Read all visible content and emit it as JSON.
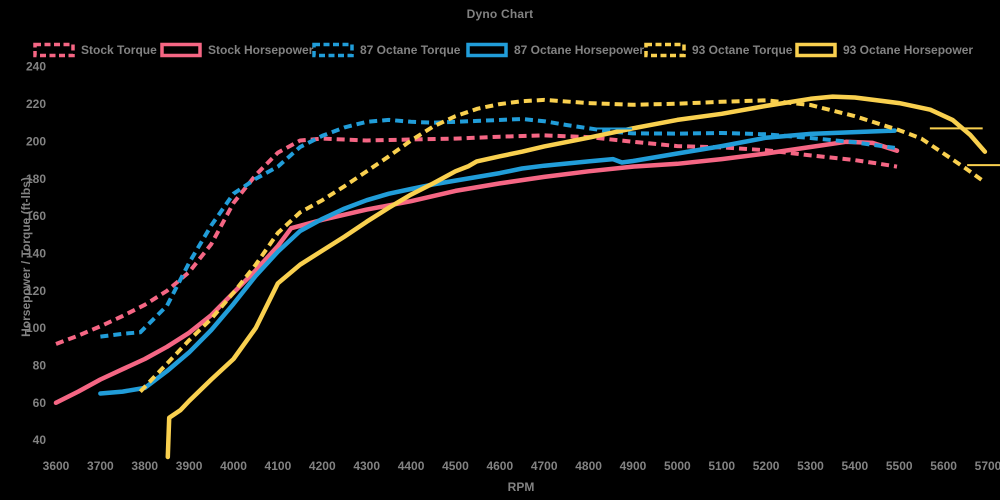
{
  "title": "Dyno Chart",
  "colors": {
    "background": "#000000",
    "text": "#828282",
    "pink": "#F56684",
    "blue": "#219DD9",
    "yellow": "#F9D04F"
  },
  "legend": {
    "items": [
      {
        "id": "stock-torque",
        "label": "Stock Torque",
        "color": "pink",
        "dash": true
      },
      {
        "id": "stock-horsepower",
        "label": "Stock Horsepower",
        "color": "pink",
        "dash": false
      },
      {
        "id": "87-octane-torque",
        "label": "87 Octane Torque",
        "color": "blue",
        "dash": true
      },
      {
        "id": "87-octane-horsepower",
        "label": "87 Octane Horsepower",
        "color": "blue",
        "dash": false
      },
      {
        "id": "93-octane-torque",
        "label": "93 Octane Torque",
        "color": "yellow",
        "dash": true
      },
      {
        "id": "93-octane-horsepower",
        "label": "93 Octane Horsepower",
        "color": "yellow",
        "dash": false
      }
    ]
  },
  "axes": {
    "x": {
      "label": "RPM",
      "min": 3600,
      "max": 5700,
      "tick_step": 100,
      "ticks": [
        3600,
        3700,
        3800,
        3900,
        4000,
        4100,
        4200,
        4300,
        4400,
        4500,
        4600,
        4700,
        4800,
        4900,
        5000,
        5100,
        5200,
        5300,
        5400,
        5500,
        5600,
        5700
      ]
    },
    "y": {
      "label": "Horsepower / Torque (ft-lbs)",
      "min": 40,
      "max": 240,
      "tick_step": 20,
      "ticks": [
        40,
        60,
        80,
        100,
        120,
        140,
        160,
        180,
        200,
        220,
        240
      ]
    }
  },
  "chart_data": {
    "type": "line",
    "title": "Dyno Chart",
    "xlabel": "RPM",
    "ylabel": "Horsepower / Torque (ft-lbs)",
    "xlim": [
      3600,
      5700
    ],
    "ylim": [
      40,
      240
    ],
    "grid": false,
    "legend_position": "top",
    "series": [
      {
        "id": "stock-torque",
        "name": "Stock Torque",
        "color": "pink",
        "dash": true,
        "points": [
          [
            3600,
            91.5
          ],
          [
            3650,
            96
          ],
          [
            3700,
            101
          ],
          [
            3750,
            106.5
          ],
          [
            3800,
            112.5
          ],
          [
            3850,
            120
          ],
          [
            3900,
            130
          ],
          [
            3950,
            145
          ],
          [
            4000,
            167
          ],
          [
            4050,
            182
          ],
          [
            4100,
            194
          ],
          [
            4150,
            200.5
          ],
          [
            4200,
            201.5
          ],
          [
            4300,
            200.5
          ],
          [
            4400,
            201
          ],
          [
            4500,
            201.5
          ],
          [
            4600,
            202.5
          ],
          [
            4700,
            203.2
          ],
          [
            4800,
            202.3
          ],
          [
            4900,
            199.8
          ],
          [
            5000,
            197.5
          ],
          [
            5100,
            196.8
          ],
          [
            5200,
            195.3
          ],
          [
            5300,
            192.5
          ],
          [
            5400,
            190
          ],
          [
            5450,
            188.2
          ],
          [
            5495,
            186.5
          ]
        ]
      },
      {
        "id": "stock-horsepower",
        "name": "Stock Horsepower",
        "color": "pink",
        "dash": false,
        "points": [
          [
            3600,
            60
          ],
          [
            3650,
            66
          ],
          [
            3700,
            72.5
          ],
          [
            3750,
            78
          ],
          [
            3800,
            83.5
          ],
          [
            3850,
            90
          ],
          [
            3900,
            97.5
          ],
          [
            3950,
            107
          ],
          [
            4000,
            119
          ],
          [
            4050,
            131
          ],
          [
            4100,
            144
          ],
          [
            4130,
            153.5
          ],
          [
            4200,
            158
          ],
          [
            4300,
            163.5
          ],
          [
            4400,
            168
          ],
          [
            4500,
            173.5
          ],
          [
            4600,
            177.5
          ],
          [
            4700,
            181
          ],
          [
            4800,
            184
          ],
          [
            4900,
            186.5
          ],
          [
            5000,
            188
          ],
          [
            5100,
            190.5
          ],
          [
            5200,
            193.5
          ],
          [
            5300,
            197
          ],
          [
            5380,
            199.8
          ],
          [
            5440,
            199.2
          ],
          [
            5495,
            195
          ]
        ]
      },
      {
        "id": "87-octane-torque",
        "name": "87 Octane Torque",
        "color": "blue",
        "dash": true,
        "points": [
          [
            3700,
            95.5
          ],
          [
            3750,
            97
          ],
          [
            3790,
            97.8
          ],
          [
            3850,
            112
          ],
          [
            3900,
            135
          ],
          [
            3950,
            155
          ],
          [
            4000,
            172
          ],
          [
            4050,
            180
          ],
          [
            4100,
            186.5
          ],
          [
            4150,
            197
          ],
          [
            4200,
            203
          ],
          [
            4250,
            207.5
          ],
          [
            4300,
            210.5
          ],
          [
            4350,
            211.5
          ],
          [
            4400,
            210.5
          ],
          [
            4450,
            210
          ],
          [
            4550,
            211
          ],
          [
            4650,
            212
          ],
          [
            4700,
            210.8
          ],
          [
            4750,
            208.8
          ],
          [
            4800,
            207
          ],
          [
            4850,
            205.3
          ],
          [
            4900,
            204.3
          ],
          [
            5000,
            204.2
          ],
          [
            5100,
            204.5
          ],
          [
            5200,
            203.8
          ],
          [
            5300,
            201.8
          ],
          [
            5400,
            199.5
          ],
          [
            5490,
            196.5
          ]
        ]
      },
      {
        "id": "87-octane-horsepower",
        "name": "87 Octane Horsepower",
        "color": "blue",
        "dash": false,
        "points": [
          [
            3700,
            65
          ],
          [
            3750,
            66
          ],
          [
            3800,
            68
          ],
          [
            3850,
            77
          ],
          [
            3900,
            87
          ],
          [
            3950,
            99
          ],
          [
            4000,
            113
          ],
          [
            4050,
            128
          ],
          [
            4100,
            141
          ],
          [
            4150,
            152
          ],
          [
            4200,
            158.5
          ],
          [
            4250,
            164
          ],
          [
            4300,
            168.5
          ],
          [
            4350,
            172
          ],
          [
            4400,
            174.5
          ],
          [
            4450,
            177
          ],
          [
            4500,
            179
          ],
          [
            4550,
            181
          ],
          [
            4600,
            183
          ],
          [
            4650,
            185.5
          ],
          [
            4700,
            187
          ],
          [
            4800,
            189.3
          ],
          [
            4855,
            190.5
          ],
          [
            4875,
            188.7
          ],
          [
            4900,
            189.5
          ],
          [
            5000,
            193.5
          ],
          [
            5100,
            197.5
          ],
          [
            5200,
            202
          ],
          [
            5300,
            204
          ],
          [
            5400,
            205
          ],
          [
            5490,
            205.8
          ]
        ]
      },
      {
        "id": "93-octane-torque",
        "name": "93 Octane Torque",
        "color": "yellow",
        "dash": true,
        "points": [
          [
            3790,
            66
          ],
          [
            3850,
            81
          ],
          [
            3900,
            93.5
          ],
          [
            3950,
            105
          ],
          [
            4000,
            119
          ],
          [
            4050,
            134
          ],
          [
            4100,
            151
          ],
          [
            4150,
            162
          ],
          [
            4200,
            168.5
          ],
          [
            4250,
            176
          ],
          [
            4300,
            184
          ],
          [
            4350,
            192
          ],
          [
            4400,
            200.5
          ],
          [
            4450,
            208
          ],
          [
            4500,
            213.5
          ],
          [
            4550,
            217.5
          ],
          [
            4600,
            220
          ],
          [
            4650,
            221.5
          ],
          [
            4700,
            222.2
          ],
          [
            4800,
            220.5
          ],
          [
            4900,
            219.6
          ],
          [
            5000,
            220.2
          ],
          [
            5100,
            221.2
          ],
          [
            5200,
            222
          ],
          [
            5300,
            219.5
          ],
          [
            5400,
            213.5
          ],
          [
            5500,
            206
          ],
          [
            5550,
            201.5
          ],
          [
            5600,
            193.5
          ],
          [
            5650,
            185.5
          ],
          [
            5688,
            179
          ]
        ]
      },
      {
        "id": "93-octane-horsepower",
        "name": "93 Octane Horsepower",
        "color": "yellow",
        "dash": false,
        "points": [
          [
            3852,
            31
          ],
          [
            3855,
            52
          ],
          [
            3880,
            56
          ],
          [
            3900,
            61
          ],
          [
            3950,
            72.5
          ],
          [
            4000,
            83.5
          ],
          [
            4050,
            100
          ],
          [
            4100,
            124
          ],
          [
            4150,
            134
          ],
          [
            4200,
            141.5
          ],
          [
            4250,
            149
          ],
          [
            4300,
            157
          ],
          [
            4350,
            164.5
          ],
          [
            4400,
            171.5
          ],
          [
            4450,
            177.5
          ],
          [
            4500,
            184
          ],
          [
            4530,
            186.8
          ],
          [
            4548,
            189.3
          ],
          [
            4600,
            192
          ],
          [
            4650,
            194.5
          ],
          [
            4700,
            197.3
          ],
          [
            4800,
            202
          ],
          [
            4900,
            207
          ],
          [
            5000,
            211.5
          ],
          [
            5100,
            214.8
          ],
          [
            5200,
            219
          ],
          [
            5300,
            222.8
          ],
          [
            5350,
            224
          ],
          [
            5400,
            223.5
          ],
          [
            5500,
            220.5
          ],
          [
            5570,
            217
          ],
          [
            5620,
            211.5
          ],
          [
            5660,
            203.5
          ],
          [
            5693,
            194.5
          ]
        ]
      }
    ],
    "artifact_segments": [
      {
        "id": "87hp-flat-spike",
        "color": "blue",
        "points": [
          [
            4808,
            206.9
          ],
          [
            4898,
            206.9
          ]
        ]
      },
      {
        "id": "93hp-flat-spike-1",
        "color": "yellow",
        "points": [
          [
            5569,
            207
          ],
          [
            5688,
            207
          ]
        ]
      },
      {
        "id": "93hp-flat-spike-2",
        "color": "yellow",
        "points": [
          [
            5653,
            187.3
          ],
          [
            5727,
            187.3
          ]
        ]
      }
    ]
  }
}
